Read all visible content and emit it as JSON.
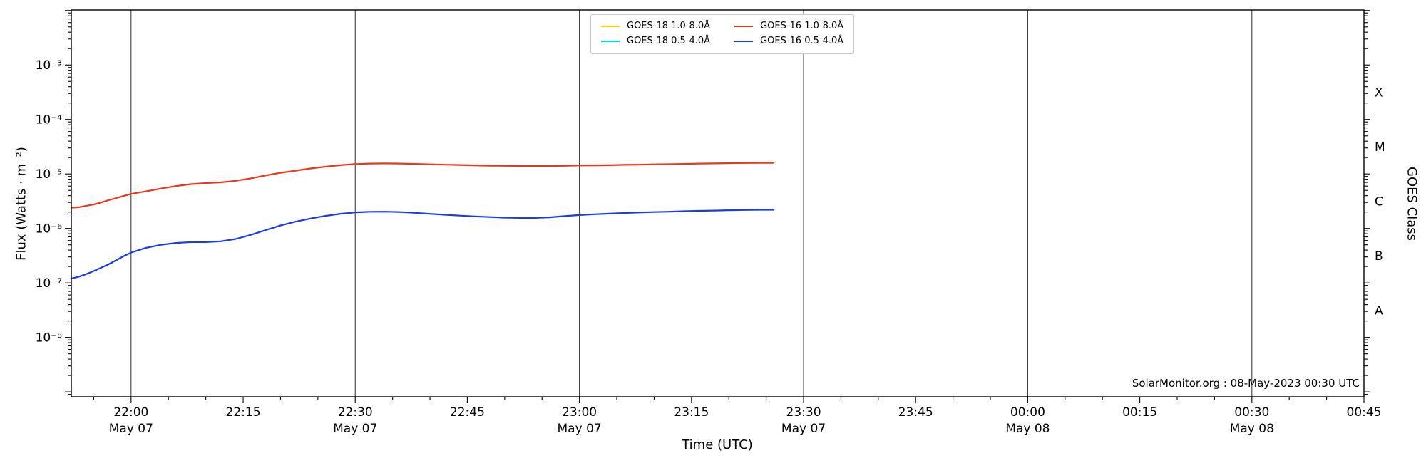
{
  "watermark": "SolarMonitor.org : 08-May-2023 00:30 UTC",
  "chart_data": {
    "type": "line",
    "title": "",
    "xlabel": "Time (UTC)",
    "ylabel": "Flux (Watts · m⁻²)",
    "ylabel_right": "GOES Class",
    "grid_color": "#2b2b2b",
    "x_axis": {
      "start": "21:52",
      "end": "00:45",
      "minor_tick_minutes": 5,
      "major_tick_minutes": 15,
      "ticks": [
        {
          "label": "22:00",
          "date": "May 07"
        },
        {
          "label": "22:15"
        },
        {
          "label": "22:30",
          "date": "May 07"
        },
        {
          "label": "22:45"
        },
        {
          "label": "23:00",
          "date": "May 07"
        },
        {
          "label": "23:15"
        },
        {
          "label": "23:30",
          "date": "May 07"
        },
        {
          "label": "23:45"
        },
        {
          "label": "00:00",
          "date": "May 08"
        },
        {
          "label": "00:15"
        },
        {
          "label": "00:30",
          "date": "May 08"
        },
        {
          "label": "00:45"
        }
      ]
    },
    "y_axis": {
      "scale": "log",
      "log_min": -9.09,
      "log_max": -1.99,
      "ticks": [
        {
          "exp": -3,
          "label": "10⁻³"
        },
        {
          "exp": -4,
          "label": "10⁻⁴"
        },
        {
          "exp": -5,
          "label": "10⁻⁵"
        },
        {
          "exp": -6,
          "label": "10⁻⁶"
        },
        {
          "exp": -7,
          "label": "10⁻⁷"
        },
        {
          "exp": -8,
          "label": "10⁻⁸"
        }
      ]
    },
    "goes_classes": [
      {
        "label": "X",
        "exp": -3.5
      },
      {
        "label": "M",
        "exp": -4.5
      },
      {
        "label": "C",
        "exp": -5.5
      },
      {
        "label": "B",
        "exp": -6.5
      },
      {
        "label": "A",
        "exp": -7.5
      }
    ],
    "legend_position": "top-center",
    "series": [
      {
        "id": "goes18-long",
        "label": "GOES-18 1.0-8.0Å",
        "color": "#ffd60a",
        "points": []
      },
      {
        "id": "goes18-short",
        "label": "GOES-18 0.5-4.0Å",
        "color": "#00dff0",
        "points": []
      },
      {
        "id": "goes16-long",
        "label": "GOES-16 1.0-8.0Å",
        "color": "#e8381c",
        "points": [
          [
            "21:52",
            2.4e-06
          ],
          [
            "21:53",
            2.45e-06
          ],
          [
            "21:54",
            2.6e-06
          ],
          [
            "21:55",
            2.75e-06
          ],
          [
            "21:56",
            3e-06
          ],
          [
            "21:57",
            3.3e-06
          ],
          [
            "21:58",
            3.6e-06
          ],
          [
            "21:59",
            3.95e-06
          ],
          [
            "22:00",
            4.3e-06
          ],
          [
            "22:02",
            4.8e-06
          ],
          [
            "22:04",
            5.4e-06
          ],
          [
            "22:06",
            6e-06
          ],
          [
            "22:08",
            6.5e-06
          ],
          [
            "22:10",
            6.8e-06
          ],
          [
            "22:12",
            7e-06
          ],
          [
            "22:14",
            7.5e-06
          ],
          [
            "22:16",
            8.3e-06
          ],
          [
            "22:18",
            9.4e-06
          ],
          [
            "22:20",
            1.05e-05
          ],
          [
            "22:22",
            1.15e-05
          ],
          [
            "22:24",
            1.26e-05
          ],
          [
            "22:26",
            1.36e-05
          ],
          [
            "22:28",
            1.45e-05
          ],
          [
            "22:30",
            1.52e-05
          ],
          [
            "22:32",
            1.55e-05
          ],
          [
            "22:34",
            1.56e-05
          ],
          [
            "22:36",
            1.55e-05
          ],
          [
            "22:38",
            1.53e-05
          ],
          [
            "22:40",
            1.5e-05
          ],
          [
            "22:42",
            1.48e-05
          ],
          [
            "22:44",
            1.46e-05
          ],
          [
            "22:46",
            1.44e-05
          ],
          [
            "22:48",
            1.42e-05
          ],
          [
            "22:50",
            1.41e-05
          ],
          [
            "22:52",
            1.4e-05
          ],
          [
            "22:54",
            1.4e-05
          ],
          [
            "22:56",
            1.4e-05
          ],
          [
            "22:58",
            1.41e-05
          ],
          [
            "23:00",
            1.43e-05
          ],
          [
            "23:02",
            1.44e-05
          ],
          [
            "23:04",
            1.45e-05
          ],
          [
            "23:06",
            1.47e-05
          ],
          [
            "23:08",
            1.48e-05
          ],
          [
            "23:10",
            1.5e-05
          ],
          [
            "23:12",
            1.51e-05
          ],
          [
            "23:14",
            1.53e-05
          ],
          [
            "23:16",
            1.55e-05
          ],
          [
            "23:18",
            1.56e-05
          ],
          [
            "23:20",
            1.58e-05
          ],
          [
            "23:22",
            1.59e-05
          ],
          [
            "23:24",
            1.6e-05
          ],
          [
            "23:26",
            1.6e-05
          ]
        ]
      },
      {
        "id": "goes16-short",
        "label": "GOES-16 0.5-4.0Å",
        "color": "#1d3ce0",
        "points": [
          [
            "21:52",
            1.2e-07
          ],
          [
            "21:53",
            1.3e-07
          ],
          [
            "21:54",
            1.45e-07
          ],
          [
            "21:55",
            1.65e-07
          ],
          [
            "21:56",
            1.9e-07
          ],
          [
            "21:57",
            2.2e-07
          ],
          [
            "21:58",
            2.6e-07
          ],
          [
            "21:59",
            3.1e-07
          ],
          [
            "22:00",
            3.6e-07
          ],
          [
            "22:02",
            4.4e-07
          ],
          [
            "22:04",
            5e-07
          ],
          [
            "22:06",
            5.4e-07
          ],
          [
            "22:08",
            5.6e-07
          ],
          [
            "22:10",
            5.6e-07
          ],
          [
            "22:12",
            5.8e-07
          ],
          [
            "22:14",
            6.4e-07
          ],
          [
            "22:16",
            7.6e-07
          ],
          [
            "22:18",
            9.3e-07
          ],
          [
            "22:20",
            1.13e-06
          ],
          [
            "22:22",
            1.33e-06
          ],
          [
            "22:24",
            1.52e-06
          ],
          [
            "22:26",
            1.7e-06
          ],
          [
            "22:28",
            1.86e-06
          ],
          [
            "22:30",
            1.97e-06
          ],
          [
            "22:32",
            2.02e-06
          ],
          [
            "22:34",
            2.03e-06
          ],
          [
            "22:36",
            2e-06
          ],
          [
            "22:38",
            1.93e-06
          ],
          [
            "22:40",
            1.85e-06
          ],
          [
            "22:42",
            1.78e-06
          ],
          [
            "22:44",
            1.72e-06
          ],
          [
            "22:46",
            1.66e-06
          ],
          [
            "22:48",
            1.62e-06
          ],
          [
            "22:50",
            1.58e-06
          ],
          [
            "22:52",
            1.56e-06
          ],
          [
            "22:54",
            1.56e-06
          ],
          [
            "22:56",
            1.6e-06
          ],
          [
            "22:58",
            1.68e-06
          ],
          [
            "23:00",
            1.76e-06
          ],
          [
            "23:02",
            1.82e-06
          ],
          [
            "23:04",
            1.87e-06
          ],
          [
            "23:06",
            1.92e-06
          ],
          [
            "23:08",
            1.96e-06
          ],
          [
            "23:10",
            2e-06
          ],
          [
            "23:12",
            2.03e-06
          ],
          [
            "23:14",
            2.07e-06
          ],
          [
            "23:16",
            2.1e-06
          ],
          [
            "23:18",
            2.13e-06
          ],
          [
            "23:20",
            2.16e-06
          ],
          [
            "23:22",
            2.18e-06
          ],
          [
            "23:24",
            2.2e-06
          ],
          [
            "23:26",
            2.2e-06
          ]
        ]
      }
    ]
  }
}
